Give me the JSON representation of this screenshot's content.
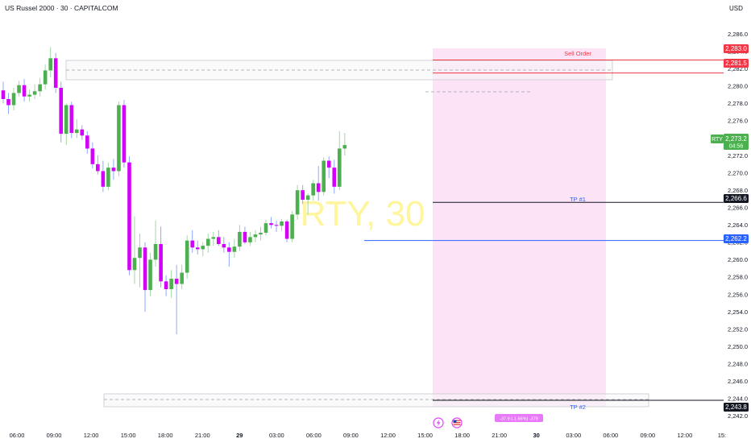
{
  "header": {
    "symbol_title": "US Russel 2000 · 30 · CAPITALCOM",
    "currency": "USD"
  },
  "watermark": "RTY, 30",
  "colors": {
    "up": "#4caf50",
    "down": "#d500f9",
    "sell_line": "#f23645",
    "tp1_line": "#131722",
    "entry_line": "#2962ff",
    "tp2_line": "#131722",
    "projection_fill": "#fce4f6",
    "watermark": "#fff59d",
    "axis_text": "#131722"
  },
  "chart_data": {
    "type": "candlestick",
    "title": "US Russel 2000 · 30 · CAPITALCOM",
    "ylabel": "USD",
    "ylim": [
      2241.2,
      2287.5
    ],
    "y_ticks": [
      "2,242.0",
      "2,244.0",
      "2,246.0",
      "2,248.0",
      "2,250.0",
      "2,252.0",
      "2,254.0",
      "2,256.0",
      "2,258.0",
      "2,260.0",
      "2,262.0",
      "2,264.0",
      "2,266.0",
      "2,268.0",
      "2,270.0",
      "2,272.0",
      "2,274.0",
      "2,276.0",
      "2,278.0",
      "2,280.0",
      "2,282.0",
      "2,284.0",
      "2,286.0"
    ],
    "x_ticks": [
      "06:00",
      "09:00",
      "12:00",
      "15:00",
      "18:00",
      "21:00",
      "29",
      "03:00",
      "06:00",
      "09:00",
      "12:00",
      "15:00",
      "18:00",
      "21:00",
      "30",
      "03:00",
      "06:00",
      "09:00",
      "12:00",
      "15:"
    ],
    "grid": false,
    "candles": [
      [
        2279.5,
        2280.5,
        2278.0,
        2278.5
      ],
      [
        2278.5,
        2279.2,
        2276.8,
        2277.8
      ],
      [
        2277.8,
        2279.8,
        2277.2,
        2279.2
      ],
      [
        2279.2,
        2280.6,
        2278.8,
        2280.1
      ],
      [
        2280.1,
        2280.8,
        2278.2,
        2278.8
      ],
      [
        2278.8,
        2279.6,
        2278.2,
        2279.0
      ],
      [
        2279.0,
        2280.2,
        2278.5,
        2279.4
      ],
      [
        2279.4,
        2280.9,
        2278.8,
        2280.2
      ],
      [
        2280.2,
        2282.5,
        2279.6,
        2281.8
      ],
      [
        2281.8,
        2284.5,
        2281.0,
        2283.2
      ],
      [
        2283.2,
        2283.8,
        2279.2,
        2279.8
      ],
      [
        2279.8,
        2280.5,
        2273.5,
        2274.5
      ],
      [
        2274.5,
        2278.0,
        2273.2,
        2277.8
      ],
      [
        2277.8,
        2278.2,
        2274.0,
        2274.6
      ],
      [
        2274.6,
        2276.2,
        2274.0,
        2275.0
      ],
      [
        2275.0,
        2275.5,
        2273.8,
        2274.3
      ],
      [
        2274.3,
        2274.8,
        2272.2,
        2272.8
      ],
      [
        2272.8,
        2273.5,
        2270.5,
        2271.0
      ],
      [
        2271.0,
        2272.0,
        2269.8,
        2270.2
      ],
      [
        2270.2,
        2271.4,
        2267.8,
        2268.4
      ],
      [
        2268.4,
        2271.2,
        2268.0,
        2270.6
      ],
      [
        2270.6,
        2271.6,
        2269.2,
        2270.2
      ],
      [
        2270.2,
        2278.2,
        2269.6,
        2277.8
      ],
      [
        2277.8,
        2278.4,
        2270.6,
        2271.2
      ],
      [
        2271.2,
        2271.9,
        2258.2,
        2258.8
      ],
      [
        2258.8,
        2265.0,
        2257.2,
        2260.2
      ],
      [
        2260.2,
        2263.0,
        2256.8,
        2261.4
      ],
      [
        2261.4,
        2262.0,
        2254.0,
        2256.5
      ],
      [
        2256.5,
        2260.8,
        2255.8,
        2260.0
      ],
      [
        2260.0,
        2264.5,
        2259.2,
        2261.8
      ],
      [
        2261.8,
        2263.8,
        2256.8,
        2257.5
      ],
      [
        2257.5,
        2258.2,
        2255.8,
        2256.6
      ],
      [
        2256.6,
        2258.8,
        2255.6,
        2257.8
      ],
      [
        2257.8,
        2259.4,
        2251.4,
        2257.2
      ],
      [
        2257.2,
        2259.4,
        2256.6,
        2258.5
      ],
      [
        2258.5,
        2262.8,
        2257.8,
        2262.2
      ],
      [
        2262.2,
        2263.4,
        2260.8,
        2261.4
      ],
      [
        2261.4,
        2262.2,
        2260.6,
        2261.2
      ],
      [
        2261.2,
        2262.0,
        2260.4,
        2261.6
      ],
      [
        2261.6,
        2263.0,
        2260.8,
        2262.4
      ],
      [
        2262.4,
        2263.2,
        2261.6,
        2262.6
      ],
      [
        2262.6,
        2263.4,
        2261.6,
        2261.8
      ],
      [
        2261.8,
        2262.6,
        2260.8,
        2261.4
      ],
      [
        2261.4,
        2262.0,
        2259.2,
        2260.9
      ],
      [
        2260.9,
        2262.4,
        2260.2,
        2261.5
      ],
      [
        2261.5,
        2264.0,
        2261.0,
        2263.2
      ],
      [
        2263.2,
        2263.8,
        2261.8,
        2262.0
      ],
      [
        2262.0,
        2263.2,
        2261.6,
        2262.6
      ],
      [
        2262.6,
        2263.4,
        2262.0,
        2262.9
      ],
      [
        2262.9,
        2263.8,
        2262.2,
        2263.1
      ],
      [
        2263.1,
        2264.6,
        2262.8,
        2264.2
      ],
      [
        2264.2,
        2264.9,
        2263.6,
        2264.0
      ],
      [
        2264.0,
        2264.5,
        2263.2,
        2263.9
      ],
      [
        2263.9,
        2264.7,
        2263.3,
        2264.4
      ],
      [
        2264.4,
        2264.6,
        2262.0,
        2262.4
      ],
      [
        2262.4,
        2265.6,
        2262.0,
        2265.2
      ],
      [
        2265.2,
        2268.6,
        2264.6,
        2268.0
      ],
      [
        2268.0,
        2268.6,
        2266.4,
        2266.9
      ],
      [
        2266.9,
        2267.6,
        2265.2,
        2267.4
      ],
      [
        2267.4,
        2269.2,
        2266.8,
        2268.8
      ],
      [
        2268.8,
        2270.8,
        2266.8,
        2267.8
      ],
      [
        2267.8,
        2271.8,
        2267.4,
        2271.4
      ],
      [
        2271.4,
        2271.9,
        2269.4,
        2270.6
      ],
      [
        2270.6,
        2271.5,
        2267.6,
        2268.4
      ],
      [
        2268.4,
        2274.8,
        2268.0,
        2272.8
      ],
      [
        2272.8,
        2274.6,
        2272.0,
        2273.2
      ]
    ],
    "levels": [
      {
        "label": "Sell Order",
        "price": "2,283.0",
        "value": 2283.0
      },
      {
        "label": "",
        "price": "2,281.5",
        "value": 2281.5
      },
      {
        "label": "TP #1",
        "price": "2,266.6",
        "value": 2266.6
      },
      {
        "label": "",
        "price": "2,262.2",
        "value": 2262.2
      },
      {
        "label": "TP #2",
        "price": "2,243.8",
        "value": 2243.8
      }
    ],
    "current_price": {
      "symbol": "RTY",
      "price": "2,273.2",
      "countdown": "04:56",
      "value": 2273.2
    },
    "position_stats": "-37.9 (-1.66%) -379"
  }
}
